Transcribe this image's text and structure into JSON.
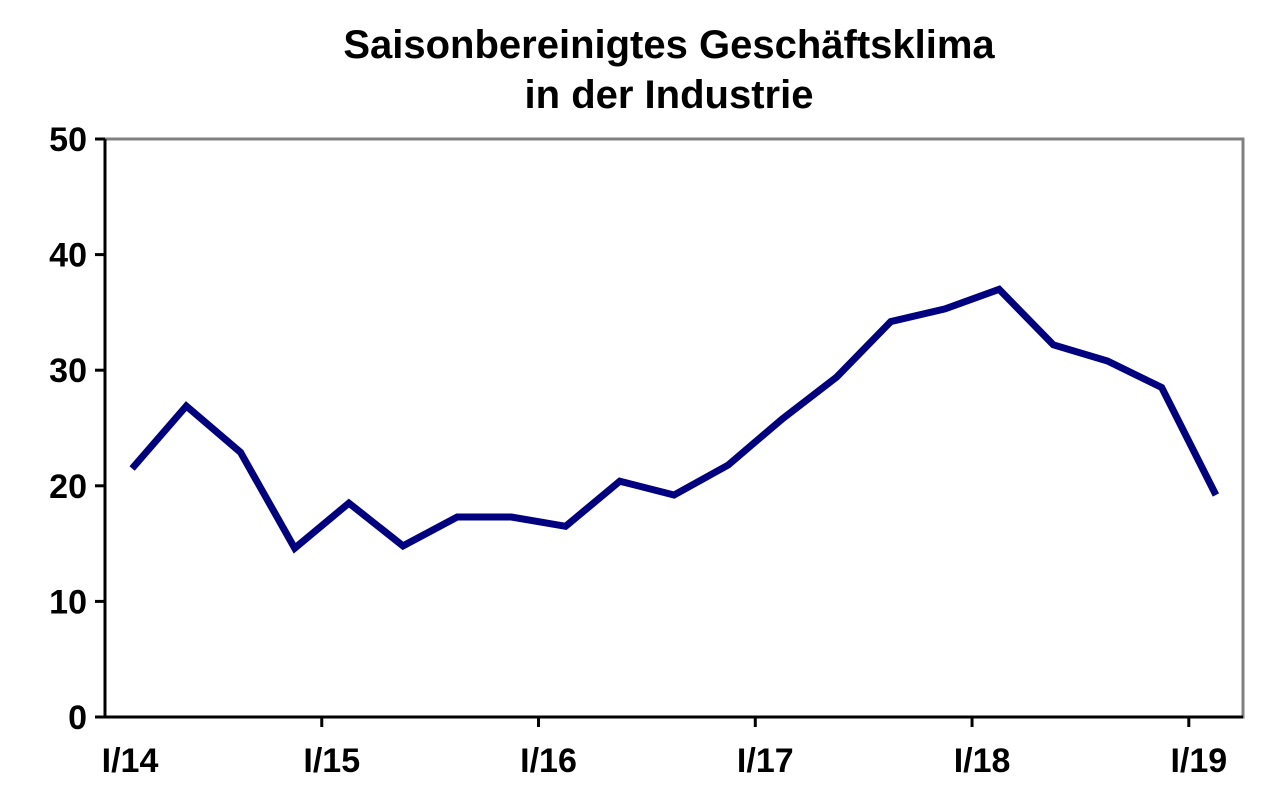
{
  "chart_data": {
    "type": "line",
    "title": "Saisonbereinigtes Geschäftsklima",
    "subtitle": "in der Industrie",
    "xlabel": "",
    "ylabel": "",
    "ylim": [
      0,
      50
    ],
    "yticks": [
      0,
      10,
      20,
      30,
      40,
      50
    ],
    "xtick_labels": [
      "I/14",
      "I/15",
      "I/16",
      "I/17",
      "I/18",
      "I/19"
    ],
    "grid": false,
    "legend": "none",
    "line_color": "#000080",
    "x": [
      "I/14",
      "II/14",
      "III/14",
      "IV/14",
      "I/15",
      "II/15",
      "III/15",
      "IV/15",
      "I/16",
      "II/16",
      "III/16",
      "IV/16",
      "I/17",
      "II/17",
      "III/17",
      "IV/17",
      "I/18",
      "II/18",
      "III/18",
      "IV/18",
      "I/19"
    ],
    "series": [
      {
        "values": [
          21.5,
          26.9,
          22.9,
          14.6,
          18.5,
          14.8,
          17.3,
          17.3,
          16.5,
          20.4,
          19.2,
          21.8,
          25.8,
          29.4,
          34.2,
          35.3,
          37.0,
          32.2,
          30.8,
          28.5,
          19.2
        ]
      }
    ]
  }
}
